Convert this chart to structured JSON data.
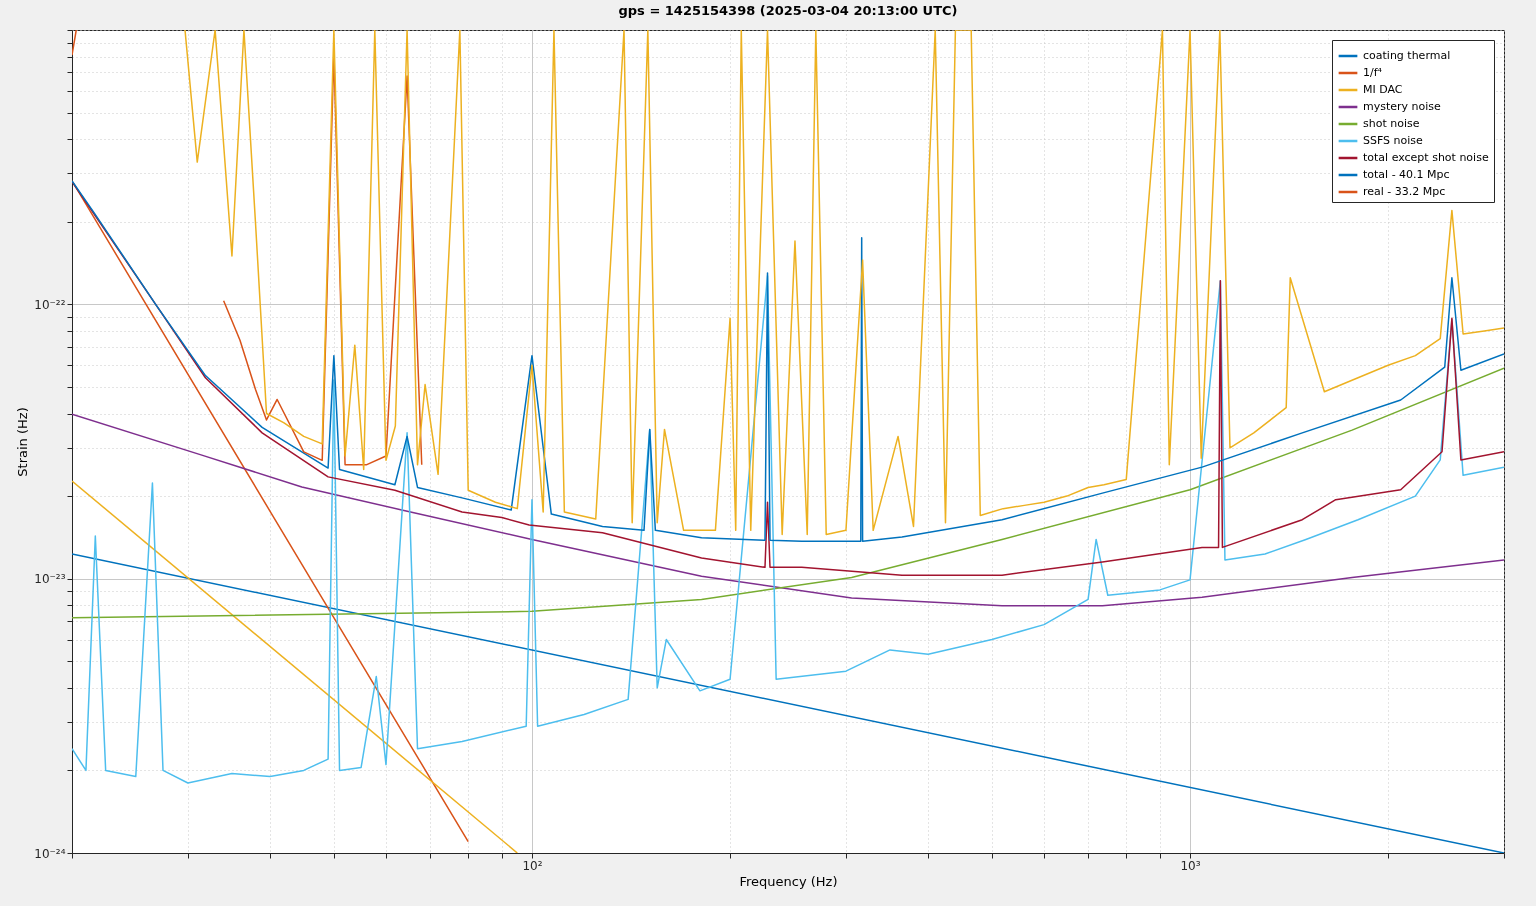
{
  "chart_data": {
    "type": "line",
    "title": "gps = 1425154398 (2025-03-04 20:13:00 UTC)",
    "xlabel": "Frequency (Hz)",
    "ylabel": "Strain (Hz)",
    "log": "xy",
    "grid": true,
    "legend": "top right",
    "xlim": [
      20,
      3000
    ],
    "ylim": [
      1e-24,
      1e-21
    ],
    "xticks": [
      {
        "value": 20,
        "label": null
      },
      {
        "value": 30,
        "label": null
      },
      {
        "value": 40,
        "label": null
      },
      {
        "value": 50,
        "label": null
      },
      {
        "value": 60,
        "label": null
      },
      {
        "value": 70,
        "label": null
      },
      {
        "value": 80,
        "label": null
      },
      {
        "value": 90,
        "label": null
      },
      {
        "value": 100,
        "label": "10²"
      },
      {
        "value": 200,
        "label": null
      },
      {
        "value": 300,
        "label": null
      },
      {
        "value": 400,
        "label": null
      },
      {
        "value": 500,
        "label": null
      },
      {
        "value": 600,
        "label": null
      },
      {
        "value": 700,
        "label": null
      },
      {
        "value": 800,
        "label": null
      },
      {
        "value": 900,
        "label": null
      },
      {
        "value": 1000,
        "label": "10³"
      },
      {
        "value": 2000,
        "label": null
      },
      {
        "value": 3000,
        "label": null
      }
    ],
    "yticks": [
      {
        "value": 1e-24,
        "label": "10⁻²⁴"
      },
      {
        "value": 2e-24,
        "label": null
      },
      {
        "value": 3e-24,
        "label": null
      },
      {
        "value": 4e-24,
        "label": null
      },
      {
        "value": 5e-24,
        "label": null
      },
      {
        "value": 6e-24,
        "label": null
      },
      {
        "value": 7e-24,
        "label": null
      },
      {
        "value": 8e-24,
        "label": null
      },
      {
        "value": 9e-24,
        "label": null
      },
      {
        "value": 1e-23,
        "label": "10⁻²³"
      },
      {
        "value": 2e-23,
        "label": null
      },
      {
        "value": 3e-23,
        "label": null
      },
      {
        "value": 4e-23,
        "label": null
      },
      {
        "value": 5e-23,
        "label": null
      },
      {
        "value": 6e-23,
        "label": null
      },
      {
        "value": 7e-23,
        "label": null
      },
      {
        "value": 8e-23,
        "label": null
      },
      {
        "value": 9e-23,
        "label": null
      },
      {
        "value": 1e-22,
        "label": "10⁻²²"
      },
      {
        "value": 2e-22,
        "label": null
      },
      {
        "value": 3e-22,
        "label": null
      },
      {
        "value": 4e-22,
        "label": null
      },
      {
        "value": 5e-22,
        "label": null
      },
      {
        "value": 6e-22,
        "label": null
      },
      {
        "value": 7e-22,
        "label": null
      },
      {
        "value": 8e-22,
        "label": null
      },
      {
        "value": 9e-22,
        "label": null
      },
      {
        "value": 1e-21,
        "label": null
      }
    ],
    "series": [
      {
        "name": "coating thermal",
        "color": "#0072bd",
        "x": [
          20,
          3000
        ],
        "values": [
          1.23e-23,
          1e-24
        ]
      },
      {
        "name": "1/f⁴",
        "color": "#d95319",
        "x": [
          20,
          40,
          80
        ],
        "values": [
          2.82e-22,
          1.76e-23,
          1.1e-24
        ]
      },
      {
        "name": "MI DAC",
        "color": "#edb120",
        "x": [
          20,
          95
        ],
        "values": [
          2.27e-23,
          1e-24
        ]
      },
      {
        "name": "mystery noise",
        "color": "#7e2f8e",
        "x": [
          20,
          31.5,
          44.7,
          63.4,
          100,
          181,
          306,
          518,
          736,
          1043,
          1763,
          3000
        ],
        "values": [
          3.98e-23,
          2.82e-23,
          2.16e-23,
          1.78e-23,
          1.39e-23,
          1.02e-23,
          8.5e-24,
          7.97e-24,
          7.97e-24,
          8.55e-24,
          1.01e-23,
          1.17e-23
        ]
      },
      {
        "name": "shot noise",
        "color": "#77ac30",
        "x": [
          20,
          100,
          181,
          306,
          518,
          1000,
          1763,
          3000
        ],
        "values": [
          7.2e-24,
          7.6e-24,
          8.4e-24,
          1.01e-23,
          1.39e-23,
          2.11e-23,
          3.48e-23,
          5.85e-23
        ]
      },
      {
        "name": "SSFS noise",
        "color": "#4dbeee",
        "x": [
          20,
          21,
          21.7,
          22.5,
          25,
          26.5,
          27.5,
          30,
          35,
          40,
          45,
          49,
          50,
          51,
          55,
          58,
          60,
          64.6,
          67,
          78.3,
          98,
          100,
          102,
          120,
          140,
          151,
          155,
          160,
          180,
          200,
          228,
          235,
          300,
          350,
          400,
          500,
          600,
          700,
          720,
          750,
          900,
          1000,
          1112,
          1130,
          1300,
          1500,
          1800,
          2200,
          2400,
          2500,
          2600,
          3000
        ],
        "values": [
          2.4e-24,
          2e-24,
          1.43e-23,
          2e-24,
          1.9e-24,
          2.23e-23,
          2e-24,
          1.8e-24,
          1.95e-24,
          1.9e-24,
          2e-24,
          2.2e-24,
          5.3e-23,
          2e-24,
          2.05e-24,
          4.4e-24,
          2.1e-24,
          3.4e-23,
          2.4e-24,
          2.55e-24,
          2.9e-24,
          1.94e-23,
          2.9e-24,
          3.2e-24,
          3.63e-24,
          3.5e-23,
          4e-24,
          6e-24,
          3.9e-24,
          4.3e-24,
          1.27e-22,
          4.3e-24,
          4.6e-24,
          5.5e-24,
          5.3e-24,
          6e-24,
          6.8e-24,
          8.4e-24,
          1.39e-23,
          8.7e-24,
          9.1e-24,
          9.9e-24,
          1.22e-22,
          1.17e-23,
          1.23e-23,
          1.39e-23,
          1.64e-23,
          2e-23,
          2.71e-23,
          8.8e-23,
          2.38e-23,
          2.55e-23
        ]
      },
      {
        "name": "total except shot noise",
        "color": "#a2142f",
        "x": [
          20,
          26.8,
          31.9,
          38.9,
          49,
          61.9,
          78.3,
          90,
          99,
          128,
          181,
          226,
          228,
          230,
          257,
          365,
          518,
          736,
          1043,
          1105,
          1112,
          1120,
          1481,
          1665,
          2090,
          2415,
          2500,
          2580,
          3000
        ],
        "values": [
          2.8e-22,
          1e-22,
          5.4e-23,
          3.4e-23,
          2.35e-23,
          2.1e-23,
          1.75e-23,
          1.67e-23,
          1.57e-23,
          1.47e-23,
          1.19e-23,
          1.1e-23,
          1.9e-23,
          1.1e-23,
          1.1e-23,
          1.03e-23,
          1.03e-23,
          1.15e-23,
          1.3e-23,
          1.3e-23,
          1.22e-22,
          1.3e-23,
          1.64e-23,
          1.94e-23,
          2.11e-23,
          2.9e-23,
          8.9e-23,
          2.71e-23,
          2.9e-23
        ]
      },
      {
        "name": "total - 40.1 Mpc",
        "color": "#0072bd",
        "x": [
          20,
          21.6,
          26.8,
          31.9,
          38.9,
          49,
          50,
          51,
          61.9,
          64.6,
          67,
          78.3,
          93,
          100,
          107,
          128,
          148,
          151,
          154,
          181,
          226,
          228,
          230,
          257,
          316,
          317,
          318,
          365,
          518,
          736,
          1043,
          1481,
          2090,
          2438,
          2500,
          2580,
          3000
        ],
        "values": [
          2.82e-22,
          2.16e-22,
          1e-22,
          5.5e-23,
          3.56e-23,
          2.53e-23,
          6.5e-23,
          2.5e-23,
          2.2e-23,
          3.3e-23,
          2.15e-23,
          1.97e-23,
          1.78e-23,
          6.5e-23,
          1.72e-23,
          1.55e-23,
          1.5e-23,
          3.5e-23,
          1.5e-23,
          1.41e-23,
          1.38e-23,
          1.3e-22,
          1.38e-23,
          1.37e-23,
          1.37e-23,
          1.75e-22,
          1.37e-23,
          1.42e-23,
          1.64e-23,
          2.05e-23,
          2.55e-23,
          3.4e-23,
          4.48e-23,
          5.9e-23,
          1.25e-22,
          5.75e-23,
          6.6e-23
        ]
      },
      {
        "name": "real - 33.2 Mpc",
        "color": "#d95319",
        "x": [
          20,
          20.3,
          21,
          34,
          36,
          38,
          39.5,
          41,
          45,
          48,
          50,
          52,
          56,
          60,
          64.6,
          68
        ],
        "values": [
          8.1e-22,
          1e-21,
          null,
          1.03e-22,
          7.4e-23,
          4.9e-23,
          3.79e-23,
          4.5e-23,
          2.9e-23,
          2.7e-23,
          8.2e-22,
          2.6e-23,
          2.6e-23,
          2.8e-23,
          6.8e-22,
          2.6e-23
        ]
      },
      {
        "color": "#edb120",
        "x": [
          29.7,
          31,
          33,
          35,
          36.5,
          38,
          39.5,
          42,
          45,
          48,
          50,
          52,
          53.8,
          55.5,
          57.7,
          60,
          62,
          64.6,
          67,
          68.8,
          72,
          77.7,
          80,
          88,
          95,
          100,
          104,
          108,
          112,
          125,
          138,
          142,
          150,
          155,
          159,
          170,
          190,
          200,
          204,
          208,
          215,
          228,
          240,
          251,
          262,
          270,
          280,
          300,
          318,
          330,
          360,
          380,
          410,
          425,
          440,
          465,
          480,
          520,
          560,
          600,
          650,
          700,
          740,
          800,
          908,
          930,
          1000,
          1040,
          1110,
          1150,
          1250,
          1400,
          1420,
          1600,
          1800,
          2000,
          2200,
          2400,
          2500,
          2600,
          2800,
          3000
        ],
        "values": [
          1e-21,
          3.3e-22,
          1e-21,
          1.5e-22,
          1e-21,
          2e-22,
          4e-23,
          3.7e-23,
          3.3e-23,
          3.1e-23,
          1e-21,
          2.8e-23,
          7.1e-23,
          2.5e-23,
          1e-21,
          2.7e-23,
          3.6e-23,
          1e-21,
          2.6e-23,
          5.1e-23,
          2.4e-23,
          1e-21,
          2.1e-23,
          1.9e-23,
          1.8e-23,
          6e-23,
          1.75e-23,
          1e-21,
          1.75e-23,
          1.65e-23,
          1e-21,
          1.6e-23,
          1e-21,
          1.6e-23,
          3.5e-23,
          1.5e-23,
          1.5e-23,
          8.9e-23,
          1.5e-23,
          1e-21,
          1.5e-23,
          1e-21,
          1.45e-23,
          1.7e-22,
          1.45e-23,
          1e-21,
          1.45e-23,
          1.5e-23,
          1.45e-22,
          1.5e-23,
          3.3e-23,
          1.55e-23,
          1e-21,
          1.6e-23,
          1e-21,
          1e-21,
          1.7e-23,
          1.8e-23,
          1.85e-23,
          1.9e-23,
          2e-23,
          2.15e-23,
          2.2e-23,
          2.3e-23,
          1e-21,
          2.6e-23,
          1e-21,
          2.75e-23,
          1e-21,
          3e-23,
          3.4e-23,
          4.2e-23,
          1.25e-22,
          4.8e-23,
          5.4e-23,
          6e-23,
          6.5e-23,
          7.5e-23,
          2.2e-22,
          7.8e-23,
          8e-23,
          8.2e-23
        ]
      }
    ]
  }
}
